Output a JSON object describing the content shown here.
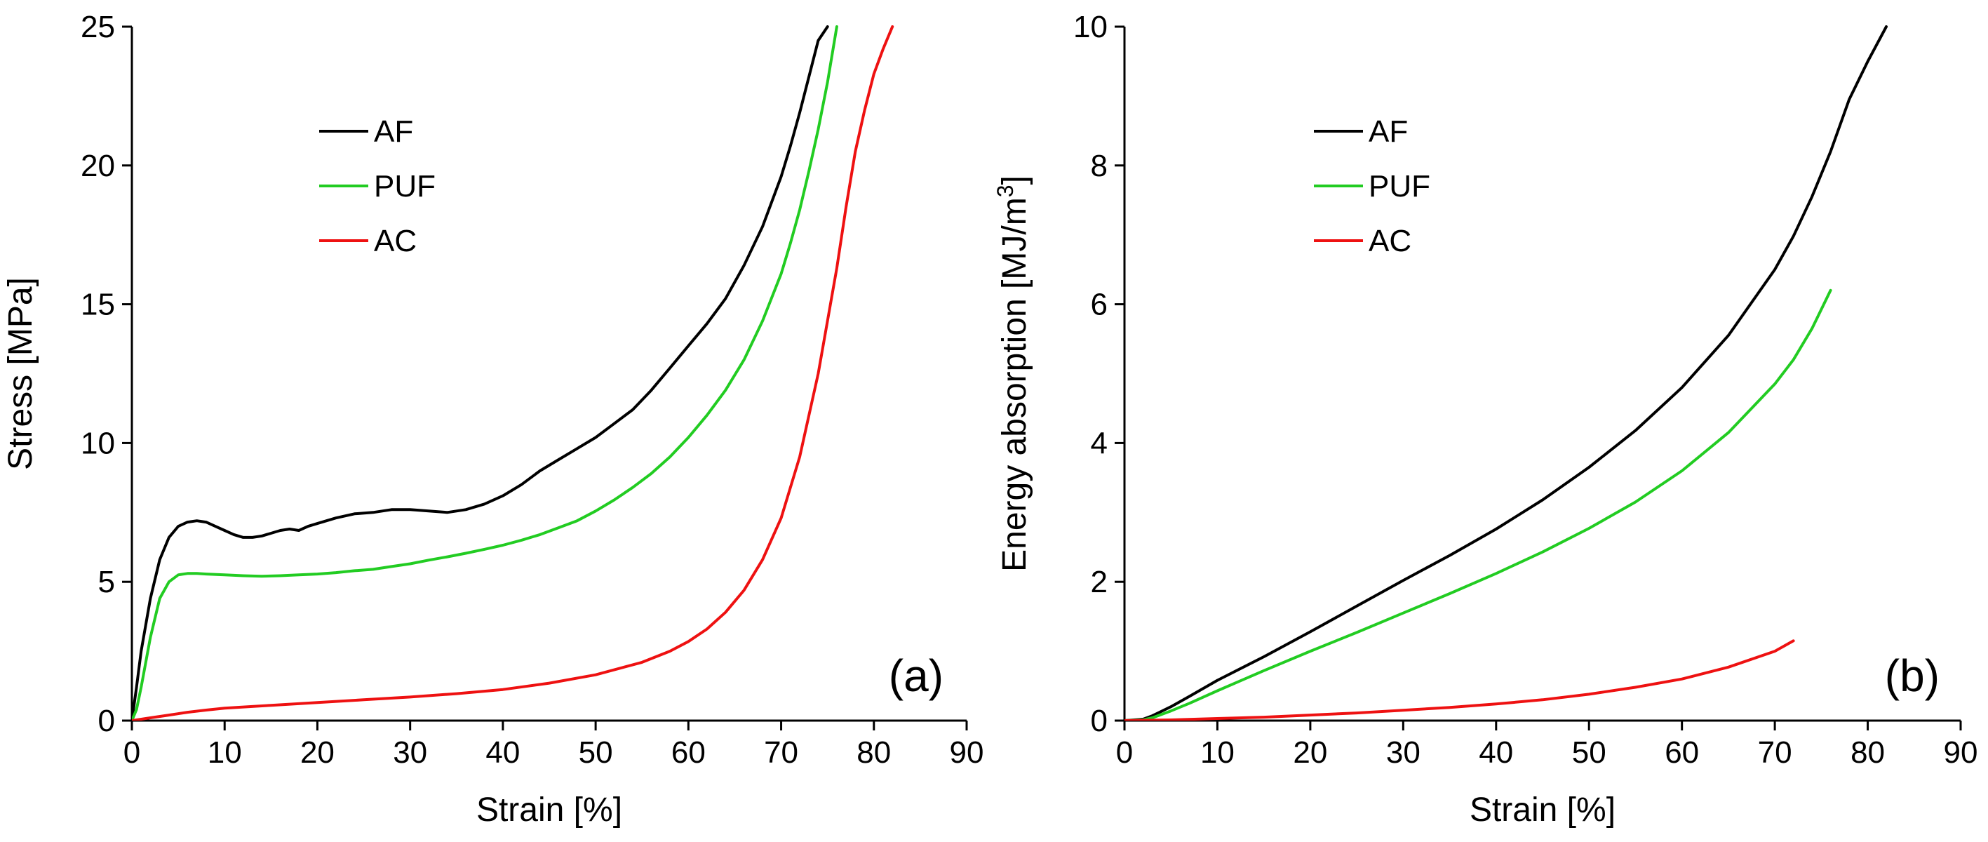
{
  "chart_data": [
    {
      "type": "line",
      "panel_label": "(a)",
      "xlabel": "Strain [%]",
      "ylabel": "Stress [MPa]",
      "xlim": [
        0,
        90
      ],
      "ylim": [
        0,
        25
      ],
      "xticks": [
        0,
        10,
        20,
        30,
        40,
        50,
        60,
        70,
        80,
        90
      ],
      "yticks": [
        0,
        5,
        10,
        15,
        20,
        25
      ],
      "legend_position": "upper-left",
      "series": [
        {
          "name": "AF",
          "color": "#000000",
          "x": [
            0,
            0.5,
            1,
            2,
            3,
            4,
            5,
            6,
            7,
            8,
            9,
            10,
            11,
            12,
            13,
            14,
            15,
            16,
            17,
            18,
            19,
            20,
            22,
            24,
            26,
            28,
            30,
            32,
            34,
            36,
            38,
            40,
            42,
            44,
            46,
            48,
            50,
            52,
            54,
            56,
            58,
            60,
            62,
            64,
            66,
            68,
            70,
            71,
            72,
            73,
            74,
            75
          ],
          "y": [
            0,
            1.2,
            2.5,
            4.4,
            5.8,
            6.6,
            7.0,
            7.15,
            7.2,
            7.15,
            7.0,
            6.85,
            6.7,
            6.6,
            6.6,
            6.65,
            6.75,
            6.85,
            6.9,
            6.85,
            7.0,
            7.1,
            7.3,
            7.45,
            7.5,
            7.6,
            7.6,
            7.55,
            7.5,
            7.6,
            7.8,
            8.1,
            8.5,
            9.0,
            9.4,
            9.8,
            10.2,
            10.7,
            11.2,
            11.9,
            12.7,
            13.5,
            14.3,
            15.2,
            16.4,
            17.8,
            19.6,
            20.7,
            21.9,
            23.2,
            24.5,
            25.0
          ]
        },
        {
          "name": "PUF",
          "color": "#22cc22",
          "x": [
            0,
            0.5,
            1,
            2,
            3,
            4,
            5,
            6,
            7,
            8,
            10,
            12,
            14,
            16,
            18,
            20,
            22,
            24,
            26,
            28,
            30,
            32,
            34,
            36,
            38,
            40,
            42,
            44,
            46,
            48,
            50,
            52,
            54,
            56,
            58,
            60,
            62,
            64,
            66,
            68,
            70,
            71,
            72,
            73,
            74,
            75,
            76
          ],
          "y": [
            0,
            0.4,
            1.2,
            3.0,
            4.4,
            5.0,
            5.25,
            5.3,
            5.3,
            5.28,
            5.25,
            5.22,
            5.2,
            5.22,
            5.25,
            5.28,
            5.33,
            5.4,
            5.45,
            5.55,
            5.65,
            5.78,
            5.9,
            6.03,
            6.17,
            6.32,
            6.5,
            6.7,
            6.95,
            7.2,
            7.55,
            7.95,
            8.4,
            8.9,
            9.5,
            10.2,
            11.0,
            11.9,
            13.0,
            14.4,
            16.1,
            17.2,
            18.4,
            19.8,
            21.3,
            23.0,
            25.0
          ]
        },
        {
          "name": "AC",
          "color": "#ee1111",
          "x": [
            0,
            2,
            4,
            6,
            8,
            10,
            15,
            20,
            25,
            30,
            35,
            40,
            45,
            50,
            55,
            58,
            60,
            62,
            64,
            66,
            68,
            70,
            72,
            74,
            76,
            77,
            78,
            79,
            80,
            81,
            82
          ],
          "y": [
            0,
            0.1,
            0.2,
            0.3,
            0.38,
            0.45,
            0.55,
            0.65,
            0.75,
            0.85,
            0.97,
            1.12,
            1.35,
            1.65,
            2.1,
            2.5,
            2.85,
            3.3,
            3.9,
            4.7,
            5.8,
            7.3,
            9.5,
            12.5,
            16.3,
            18.5,
            20.5,
            22.0,
            23.3,
            24.2,
            25.0
          ]
        }
      ]
    },
    {
      "type": "line",
      "panel_label": "(b)",
      "xlabel": "Strain [%]",
      "ylabel": "Energy absorption [MJ/m",
      "ylabel_superscript": "3",
      "ylabel_suffix": "]",
      "xlim": [
        0,
        90
      ],
      "ylim": [
        0,
        10
      ],
      "xticks": [
        0,
        10,
        20,
        30,
        40,
        50,
        60,
        70,
        80,
        90
      ],
      "yticks": [
        0,
        2,
        4,
        6,
        8,
        10
      ],
      "legend_position": "upper-left",
      "series": [
        {
          "name": "AF",
          "color": "#000000",
          "x": [
            0,
            2,
            3,
            5,
            7,
            10,
            15,
            20,
            25,
            30,
            35,
            40,
            45,
            50,
            55,
            60,
            65,
            70,
            72,
            74,
            76,
            78,
            80,
            82
          ],
          "y": [
            0,
            0.02,
            0.07,
            0.2,
            0.35,
            0.58,
            0.92,
            1.28,
            1.65,
            2.02,
            2.38,
            2.76,
            3.18,
            3.65,
            4.18,
            4.8,
            5.55,
            6.5,
            6.98,
            7.55,
            8.2,
            8.95,
            9.5,
            10.0
          ]
        },
        {
          "name": "PUF",
          "color": "#22cc22",
          "x": [
            0,
            2,
            3,
            5,
            7,
            10,
            15,
            20,
            25,
            30,
            35,
            40,
            45,
            50,
            55,
            60,
            65,
            70,
            72,
            74,
            76
          ],
          "y": [
            0,
            0.01,
            0.04,
            0.14,
            0.25,
            0.43,
            0.72,
            1.0,
            1.27,
            1.55,
            1.83,
            2.12,
            2.43,
            2.77,
            3.15,
            3.6,
            4.15,
            4.85,
            5.2,
            5.65,
            6.2
          ]
        },
        {
          "name": "AC",
          "color": "#ee1111",
          "x": [
            0,
            5,
            10,
            15,
            20,
            25,
            30,
            35,
            40,
            45,
            50,
            55,
            60,
            65,
            70,
            72
          ],
          "y": [
            0,
            0.01,
            0.03,
            0.05,
            0.08,
            0.11,
            0.15,
            0.19,
            0.24,
            0.3,
            0.38,
            0.48,
            0.6,
            0.77,
            1.0,
            1.15
          ]
        }
      ]
    }
  ]
}
